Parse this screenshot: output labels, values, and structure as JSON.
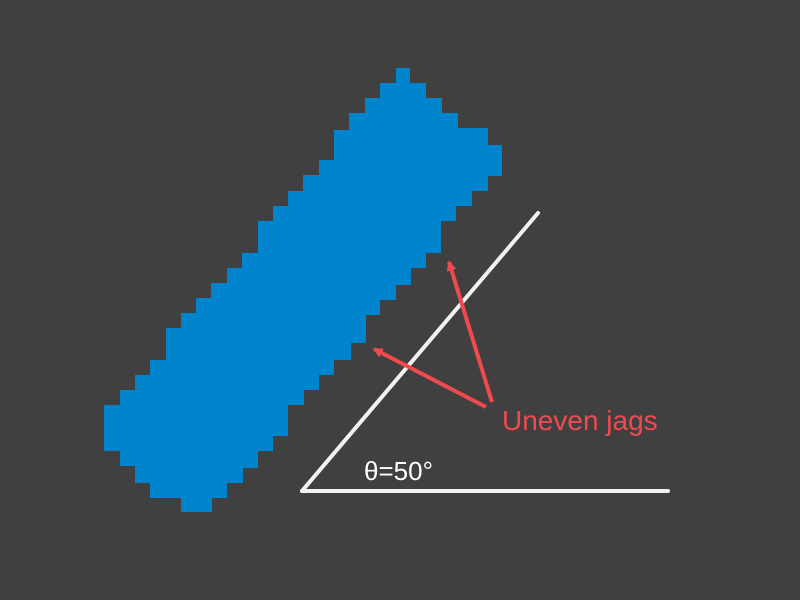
{
  "colors": {
    "background": "#404040",
    "shape_fill": "#0084CE",
    "angle_lines": "#F2F2F2",
    "annotation": "#F04A4E",
    "angle_label": "#FFFFFF"
  },
  "angle_label": "θ=50°",
  "annotation": {
    "text": "Uneven jags"
  }
}
